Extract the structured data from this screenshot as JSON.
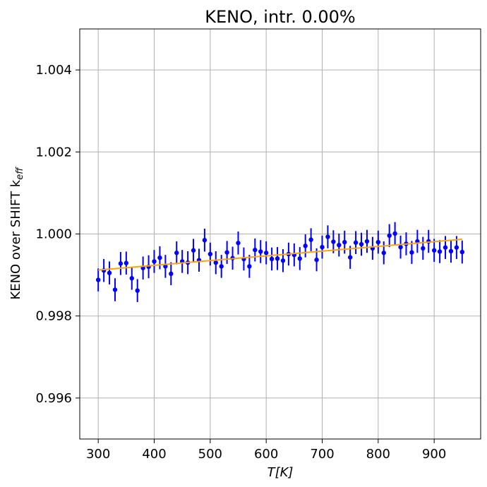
{
  "chart_data": {
    "type": "scatter",
    "title": "KENO, intr. 0.00%",
    "xlabel": "T[K]",
    "ylabel_main": "KENO over SHIFT k",
    "ylabel_sub": "eff",
    "xlim": [
      267,
      983
    ],
    "ylim": [
      0.995,
      1.005
    ],
    "x_ticks": [
      300,
      400,
      500,
      600,
      700,
      800,
      900
    ],
    "x_tick_labels": [
      "300",
      "400",
      "500",
      "600",
      "700",
      "800",
      "900"
    ],
    "y_ticks": [
      0.996,
      0.998,
      1.0,
      1.002,
      1.004
    ],
    "y_tick_labels": [
      "0.996",
      "0.998",
      "1.000",
      "1.002",
      "1.004"
    ],
    "grid": true,
    "series": [
      {
        "marker_color": "#0000ff",
        "error": 0.00028,
        "x": [
          300,
          310,
          320,
          330,
          340,
          350,
          360,
          370,
          380,
          390,
          400,
          410,
          420,
          430,
          440,
          450,
          460,
          470,
          480,
          490,
          500,
          510,
          520,
          530,
          540,
          550,
          560,
          570,
          580,
          590,
          600,
          610,
          620,
          630,
          640,
          650,
          660,
          670,
          680,
          690,
          700,
          710,
          720,
          730,
          740,
          750,
          760,
          770,
          780,
          790,
          800,
          810,
          820,
          830,
          840,
          850,
          860,
          870,
          880,
          890,
          900,
          910,
          920,
          930,
          940,
          950
        ],
        "y": [
          0.99888,
          0.99911,
          0.99905,
          0.99864,
          0.99928,
          0.99929,
          0.99892,
          0.99862,
          0.99917,
          0.9992,
          0.99933,
          0.99942,
          0.99921,
          0.99903,
          0.99954,
          0.99933,
          0.9993,
          0.9996,
          0.99936,
          0.99985,
          0.99951,
          0.9993,
          0.99921,
          0.99955,
          0.99941,
          0.99978,
          0.99939,
          0.99921,
          0.99961,
          0.99957,
          0.99954,
          0.99939,
          0.9994,
          0.99935,
          0.99951,
          0.99949,
          0.9994,
          0.99971,
          0.99986,
          0.99937,
          0.99968,
          0.99993,
          0.99981,
          0.99973,
          0.9998,
          0.99943,
          0.99979,
          0.99975,
          0.99982,
          0.99965,
          0.9998,
          0.99954,
          0.99996,
          1.00001,
          0.99968,
          0.99976,
          0.99955,
          0.99982,
          0.99965,
          0.99982,
          0.9996,
          0.99957,
          0.99967,
          0.99958,
          0.99967,
          0.99956
        ]
      },
      {
        "line_color": "#ffa500",
        "x": [
          300,
          950
        ],
        "y": [
          0.99912,
          0.99987
        ]
      }
    ]
  }
}
